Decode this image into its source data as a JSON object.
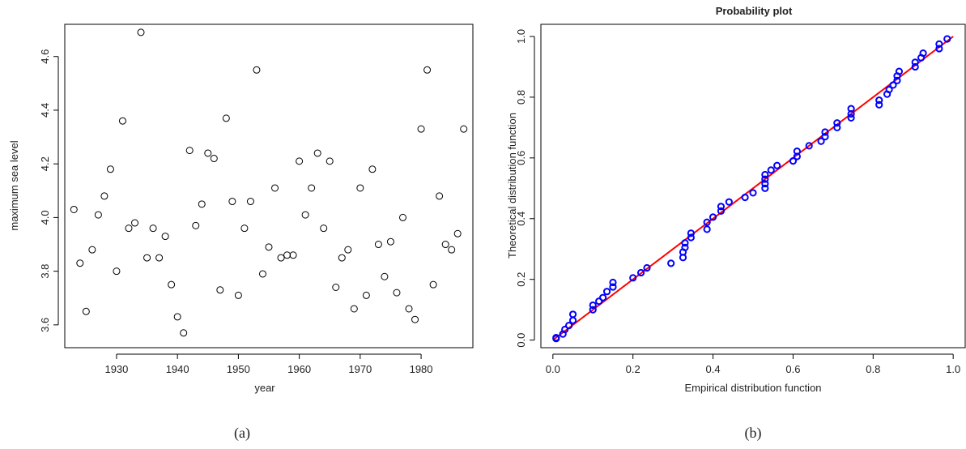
{
  "chart_data": [
    {
      "type": "scatter",
      "title": "",
      "xlabel": "year",
      "ylabel": "maximum sea level",
      "caption": "(a)",
      "xlim": [
        1921.5,
        1988.5
      ],
      "ylim": [
        3.515,
        4.72
      ],
      "xticks": [
        1930,
        1940,
        1950,
        1960,
        1970,
        1980
      ],
      "yticks": [
        3.6,
        3.8,
        4.0,
        4.2,
        4.4,
        4.6
      ],
      "ytick_labels": [
        "3.6",
        "3.8",
        "4.0",
        "4.2",
        "4.4",
        "4.6"
      ],
      "grid": false,
      "marker": "open-circle",
      "color": "#000000",
      "points": [
        [
          1923,
          4.03
        ],
        [
          1924,
          3.83
        ],
        [
          1925,
          3.65
        ],
        [
          1926,
          3.88
        ],
        [
          1927,
          4.01
        ],
        [
          1928,
          4.08
        ],
        [
          1929,
          4.18
        ],
        [
          1930,
          3.8
        ],
        [
          1931,
          4.36
        ],
        [
          1932,
          3.96
        ],
        [
          1933,
          3.98
        ],
        [
          1934,
          4.69
        ],
        [
          1935,
          3.85
        ],
        [
          1936,
          3.96
        ],
        [
          1937,
          3.85
        ],
        [
          1938,
          3.93
        ],
        [
          1939,
          3.75
        ],
        [
          1940,
          3.63
        ],
        [
          1941,
          3.57
        ],
        [
          1942,
          4.25
        ],
        [
          1943,
          3.97
        ],
        [
          1944,
          4.05
        ],
        [
          1945,
          4.24
        ],
        [
          1946,
          4.22
        ],
        [
          1947,
          3.73
        ],
        [
          1948,
          4.37
        ],
        [
          1949,
          4.06
        ],
        [
          1950,
          3.71
        ],
        [
          1951,
          3.96
        ],
        [
          1952,
          4.06
        ],
        [
          1953,
          4.55
        ],
        [
          1954,
          3.79
        ],
        [
          1955,
          3.89
        ],
        [
          1956,
          4.11
        ],
        [
          1957,
          3.85
        ],
        [
          1958,
          3.86
        ],
        [
          1959,
          3.86
        ],
        [
          1960,
          4.21
        ],
        [
          1961,
          4.01
        ],
        [
          1962,
          4.11
        ],
        [
          1963,
          4.24
        ],
        [
          1964,
          3.96
        ],
        [
          1965,
          4.21
        ],
        [
          1966,
          3.74
        ],
        [
          1967,
          3.85
        ],
        [
          1968,
          3.88
        ],
        [
          1969,
          3.66
        ],
        [
          1970,
          4.11
        ],
        [
          1971,
          3.71
        ],
        [
          1972,
          4.18
        ],
        [
          1973,
          3.9
        ],
        [
          1974,
          3.78
        ],
        [
          1975,
          3.91
        ],
        [
          1976,
          3.72
        ],
        [
          1977,
          4.0
        ],
        [
          1978,
          3.66
        ],
        [
          1979,
          3.62
        ],
        [
          1980,
          4.33
        ],
        [
          1981,
          4.55
        ],
        [
          1982,
          3.75
        ],
        [
          1983,
          4.08
        ],
        [
          1984,
          3.9
        ],
        [
          1985,
          3.88
        ],
        [
          1986,
          3.94
        ],
        [
          1987,
          4.33
        ]
      ]
    },
    {
      "type": "scatter",
      "title": "Probability plot",
      "xlabel": "Empirical distribution function",
      "ylabel": "Theoretical distribution function",
      "caption": "(b)",
      "xlim": [
        -0.03,
        1.03
      ],
      "ylim": [
        -0.025,
        1.04
      ],
      "xticks": [
        0.0,
        0.2,
        0.4,
        0.6,
        0.8,
        1.0
      ],
      "xtick_labels": [
        "0.0",
        "0.2",
        "0.4",
        "0.6",
        "0.8",
        "1.0"
      ],
      "yticks": [
        0.0,
        0.2,
        0.4,
        0.6,
        0.8,
        1.0
      ],
      "ytick_labels": [
        "0.0",
        "0.2",
        "0.4",
        "0.6",
        "0.8",
        "1.0"
      ],
      "grid": false,
      "marker": "open-circle",
      "color": "#0000ff",
      "line_color": "#ff0000",
      "reference_line": [
        [
          0,
          0
        ],
        [
          1,
          1
        ]
      ],
      "points": [
        [
          0.008,
          0.005
        ],
        [
          0.008,
          0.008
        ],
        [
          0.025,
          0.02
        ],
        [
          0.03,
          0.035
        ],
        [
          0.04,
          0.048
        ],
        [
          0.05,
          0.065
        ],
        [
          0.05,
          0.085
        ],
        [
          0.1,
          0.1
        ],
        [
          0.1,
          0.115
        ],
        [
          0.115,
          0.128
        ],
        [
          0.125,
          0.14
        ],
        [
          0.135,
          0.16
        ],
        [
          0.15,
          0.175
        ],
        [
          0.15,
          0.19
        ],
        [
          0.2,
          0.205
        ],
        [
          0.22,
          0.222
        ],
        [
          0.235,
          0.238
        ],
        [
          0.295,
          0.253
        ],
        [
          0.325,
          0.272
        ],
        [
          0.325,
          0.29
        ],
        [
          0.33,
          0.305
        ],
        [
          0.33,
          0.32
        ],
        [
          0.345,
          0.338
        ],
        [
          0.345,
          0.352
        ],
        [
          0.385,
          0.365
        ],
        [
          0.385,
          0.388
        ],
        [
          0.4,
          0.405
        ],
        [
          0.42,
          0.425
        ],
        [
          0.42,
          0.44
        ],
        [
          0.44,
          0.455
        ],
        [
          0.48,
          0.47
        ],
        [
          0.5,
          0.485
        ],
        [
          0.53,
          0.5
        ],
        [
          0.53,
          0.515
        ],
        [
          0.53,
          0.53
        ],
        [
          0.53,
          0.545
        ],
        [
          0.545,
          0.56
        ],
        [
          0.56,
          0.575
        ],
        [
          0.6,
          0.59
        ],
        [
          0.61,
          0.605
        ],
        [
          0.61,
          0.622
        ],
        [
          0.64,
          0.64
        ],
        [
          0.67,
          0.655
        ],
        [
          0.68,
          0.67
        ],
        [
          0.68,
          0.685
        ],
        [
          0.71,
          0.7
        ],
        [
          0.71,
          0.715
        ],
        [
          0.745,
          0.732
        ],
        [
          0.745,
          0.745
        ],
        [
          0.745,
          0.762
        ],
        [
          0.815,
          0.775
        ],
        [
          0.815,
          0.79
        ],
        [
          0.835,
          0.81
        ],
        [
          0.84,
          0.825
        ],
        [
          0.85,
          0.84
        ],
        [
          0.86,
          0.855
        ],
        [
          0.86,
          0.87
        ],
        [
          0.865,
          0.885
        ],
        [
          0.905,
          0.9
        ],
        [
          0.905,
          0.915
        ],
        [
          0.92,
          0.93
        ],
        [
          0.925,
          0.945
        ],
        [
          0.965,
          0.96
        ],
        [
          0.965,
          0.975
        ],
        [
          0.985,
          0.992
        ]
      ]
    }
  ]
}
